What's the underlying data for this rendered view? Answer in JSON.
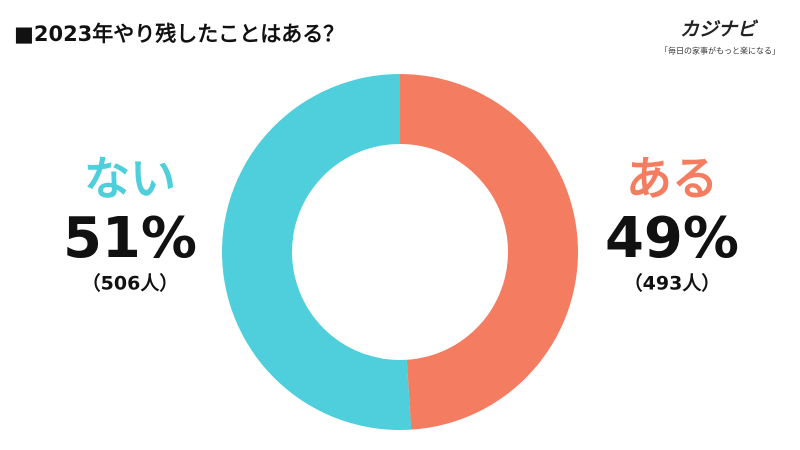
{
  "chart_data": {
    "type": "donut",
    "title": "■2023年やり残したことはある？",
    "brand": {
      "name": "カジナビ",
      "tagline": "「毎日の家事がもっと楽になる」"
    },
    "categories": [
      "ある",
      "ない"
    ],
    "values": [
      49,
      51
    ],
    "value_labels": [
      "49%",
      "51%"
    ],
    "counts": [
      493,
      506
    ],
    "count_labels": [
      "（493人）",
      "（506人）"
    ],
    "colors": [
      "#f47c60",
      "#4fcedb"
    ]
  }
}
